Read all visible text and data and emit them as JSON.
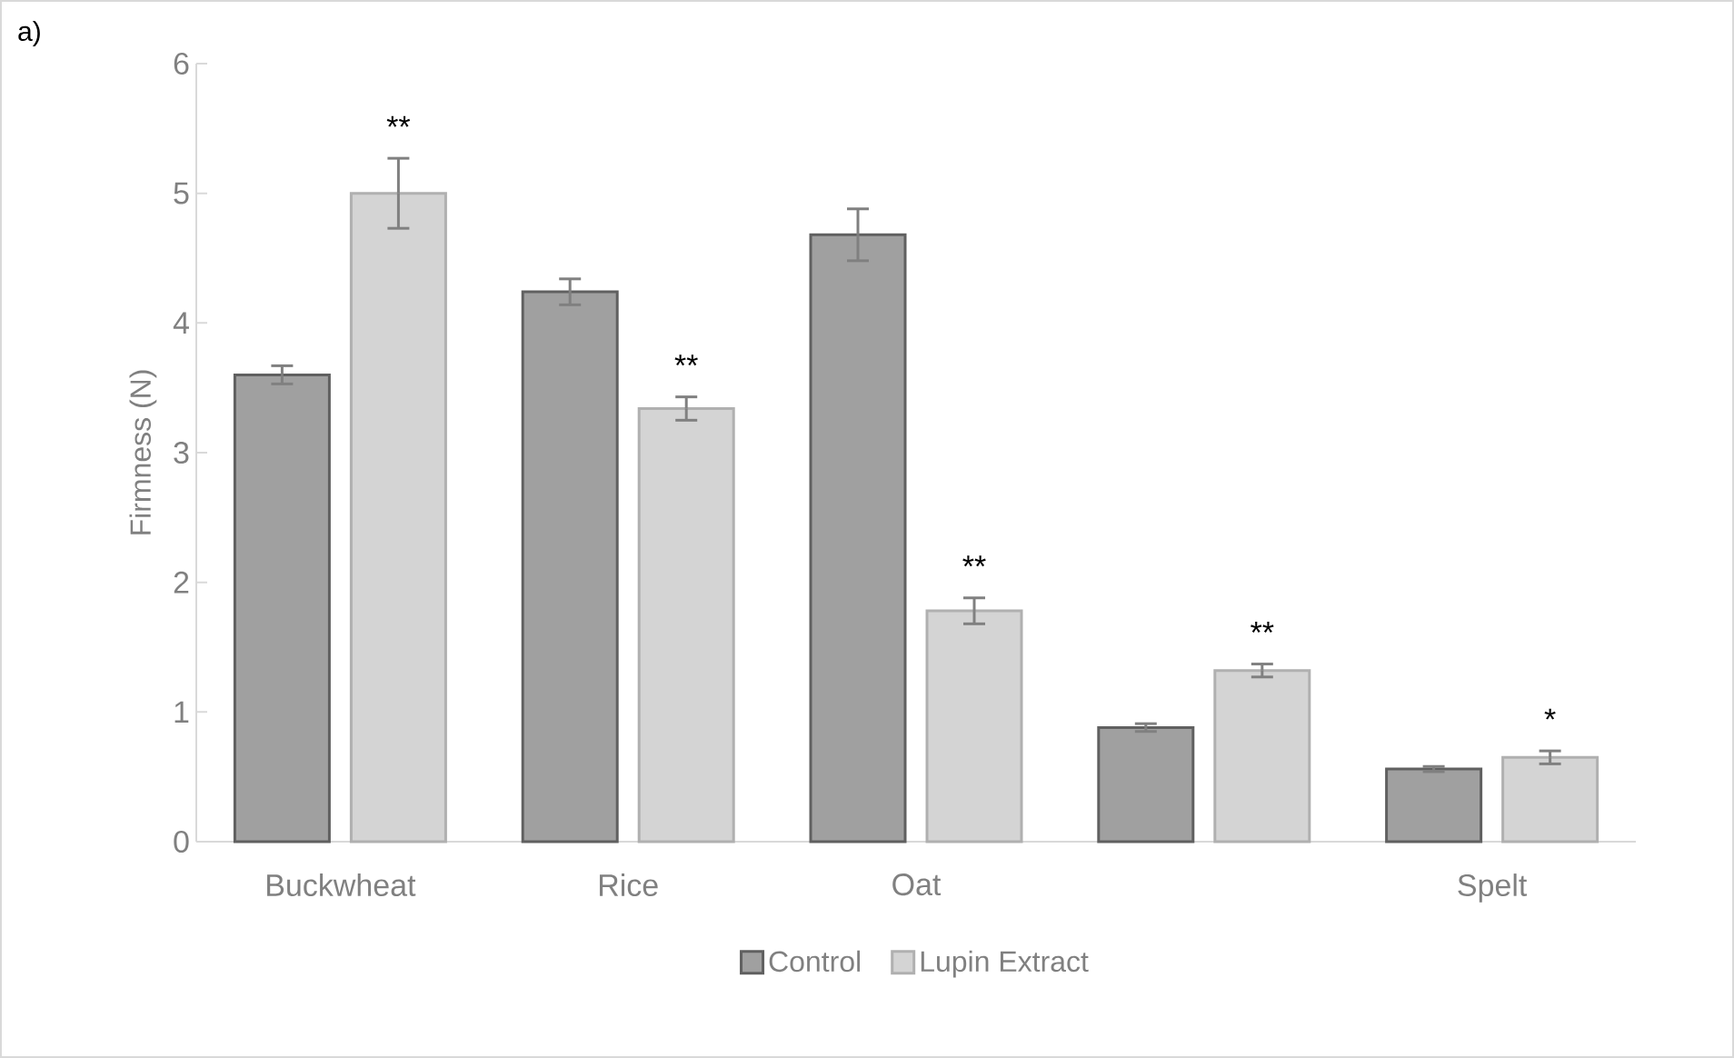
{
  "chart_data": {
    "type": "bar",
    "ylabel": "Firmness (N)",
    "categories": [
      "Buckwheat",
      "Rice",
      "Oat",
      null,
      "Spelt"
    ],
    "series": [
      {
        "name": "Control",
        "color": "#a0a0a0",
        "values": [
          3.6,
          4.24,
          4.68,
          0.88,
          0.56
        ],
        "errors": [
          0.07,
          0.1,
          0.2,
          0.03,
          0.02
        ]
      },
      {
        "name": "Lupin Extract",
        "color": "#d4d4d4",
        "values": [
          5.0,
          3.34,
          1.78,
          1.32,
          0.65
        ],
        "errors": [
          0.27,
          0.09,
          0.1,
          0.05,
          0.05
        ]
      }
    ],
    "ylim": [
      0,
      6
    ],
    "yticks": [
      0,
      1,
      2,
      3,
      4,
      5,
      6
    ],
    "legend": "bottom",
    "annotations": [
      "a)",
      "**",
      "**",
      "**",
      "**",
      "*"
    ]
  }
}
